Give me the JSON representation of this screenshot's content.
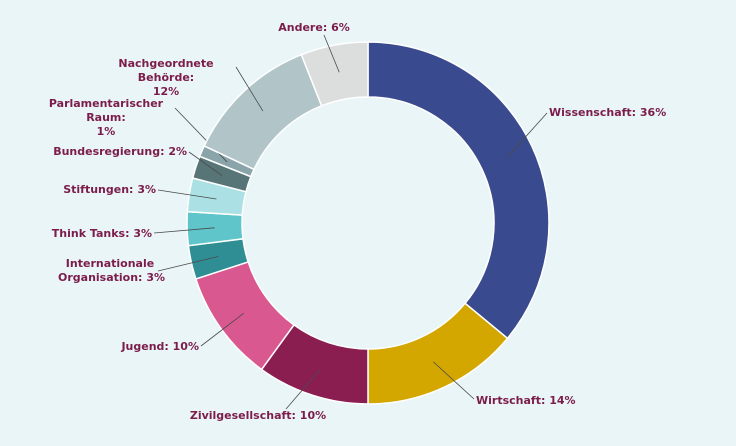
{
  "chart_data": {
    "type": "donut",
    "categories": [
      "Wissenschaft:",
      "Wirtschaft:",
      "Zivilgesellschaft:",
      "Jugend:",
      "Internationale Organisation:",
      "Think Tanks:",
      "Stiftungen:",
      "Bundesregierung:",
      "Parlamentarischer Raum:",
      "Nachgeordnete Behörde:",
      "Andere:"
    ],
    "values": [
      36,
      14,
      10,
      10,
      3,
      3,
      3,
      2,
      1,
      12,
      6
    ],
    "value_labels": [
      "36%",
      "14%",
      "10%",
      "10%",
      "3%",
      "3%",
      "3%",
      "2%",
      "1%",
      "12%",
      "6%"
    ],
    "colors": [
      "#3a4a8e",
      "#d3a600",
      "#8a1e50",
      "#da5890",
      "#2f8e93",
      "#5fc5ca",
      "#abe1e4",
      "#577476",
      "#8aa5a9",
      "#b1c5c8",
      "#dcdddd"
    ]
  }
}
